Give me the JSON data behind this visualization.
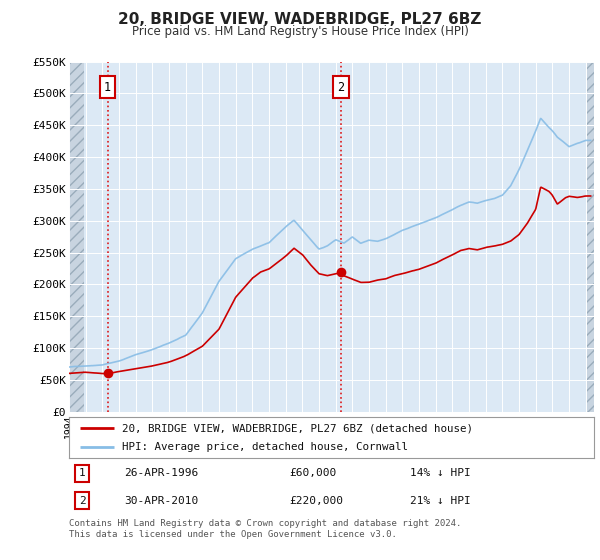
{
  "title": "20, BRIDGE VIEW, WADEBRIDGE, PL27 6BZ",
  "subtitle": "Price paid vs. HM Land Registry's House Price Index (HPI)",
  "ylim": [
    0,
    550000
  ],
  "yticks": [
    0,
    50000,
    100000,
    150000,
    200000,
    250000,
    300000,
    350000,
    400000,
    450000,
    500000,
    550000
  ],
  "ytick_labels": [
    "£0",
    "£50K",
    "£100K",
    "£150K",
    "£200K",
    "£250K",
    "£300K",
    "£350K",
    "£400K",
    "£450K",
    "£500K",
    "£550K"
  ],
  "plot_bg_color": "#dce9f5",
  "hpi_color": "#88bde6",
  "price_color": "#cc0000",
  "marker_color": "#cc0000",
  "sale1_x": 1996.32,
  "sale1_y": 60000,
  "sale2_x": 2010.33,
  "sale2_y": 220000,
  "legend_label1": "20, BRIDGE VIEW, WADEBRIDGE, PL27 6BZ (detached house)",
  "legend_label2": "HPI: Average price, detached house, Cornwall",
  "note1_num": "1",
  "note1_date": "26-APR-1996",
  "note1_price": "£60,000",
  "note1_hpi": "14% ↓ HPI",
  "note2_num": "2",
  "note2_date": "30-APR-2010",
  "note2_price": "£220,000",
  "note2_hpi": "21% ↓ HPI",
  "footnote": "Contains HM Land Registry data © Crown copyright and database right 2024.\nThis data is licensed under the Open Government Licence v3.0.",
  "xmin": 1994.0,
  "xmax": 2025.5,
  "hatch_left_end": 1994.9,
  "hatch_right_start": 2025.1
}
